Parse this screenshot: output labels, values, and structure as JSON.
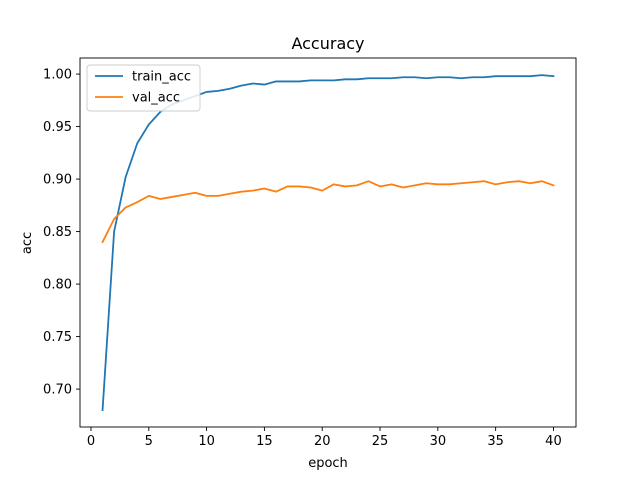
{
  "chart_data": {
    "type": "line",
    "title": "Accuracy",
    "xlabel": "epoch",
    "ylabel": "acc",
    "xlim": [
      -0.95,
      41.95
    ],
    "ylim": [
      0.6639,
      1.0153
    ],
    "x_ticks": [
      0,
      5,
      10,
      15,
      20,
      25,
      30,
      35,
      40
    ],
    "y_ticks": [
      0.7,
      0.75,
      0.8,
      0.85,
      0.9,
      0.95,
      1.0
    ],
    "y_tick_labels": [
      "0.70",
      "0.75",
      "0.80",
      "0.85",
      "0.90",
      "0.95",
      "1.00"
    ],
    "grid": false,
    "legend_position": "top-left",
    "x": [
      1,
      2,
      3,
      4,
      5,
      6,
      7,
      8,
      9,
      10,
      11,
      12,
      13,
      14,
      15,
      16,
      17,
      18,
      19,
      20,
      21,
      22,
      23,
      24,
      25,
      26,
      27,
      28,
      29,
      30,
      31,
      32,
      33,
      34,
      35,
      36,
      37,
      38,
      39,
      40
    ],
    "series": [
      {
        "name": "train_acc",
        "color": "#1f77b4",
        "values": [
          0.68,
          0.85,
          0.902,
          0.934,
          0.952,
          0.964,
          0.971,
          0.975,
          0.979,
          0.983,
          0.984,
          0.986,
          0.989,
          0.991,
          0.99,
          0.993,
          0.993,
          0.993,
          0.994,
          0.994,
          0.994,
          0.995,
          0.995,
          0.996,
          0.996,
          0.996,
          0.997,
          0.997,
          0.996,
          0.997,
          0.997,
          0.996,
          0.997,
          0.997,
          0.998,
          0.998,
          0.998,
          0.998,
          0.999,
          0.998
        ]
      },
      {
        "name": "val_acc",
        "color": "#ff7f0e",
        "values": [
          0.84,
          0.862,
          0.873,
          0.878,
          0.884,
          0.881,
          0.883,
          0.885,
          0.887,
          0.884,
          0.884,
          0.886,
          0.888,
          0.889,
          0.891,
          0.888,
          0.893,
          0.893,
          0.892,
          0.889,
          0.895,
          0.893,
          0.894,
          0.898,
          0.893,
          0.895,
          0.892,
          0.894,
          0.896,
          0.895,
          0.895,
          0.896,
          0.897,
          0.898,
          0.895,
          0.897,
          0.898,
          0.896,
          0.898,
          0.894
        ]
      }
    ]
  }
}
